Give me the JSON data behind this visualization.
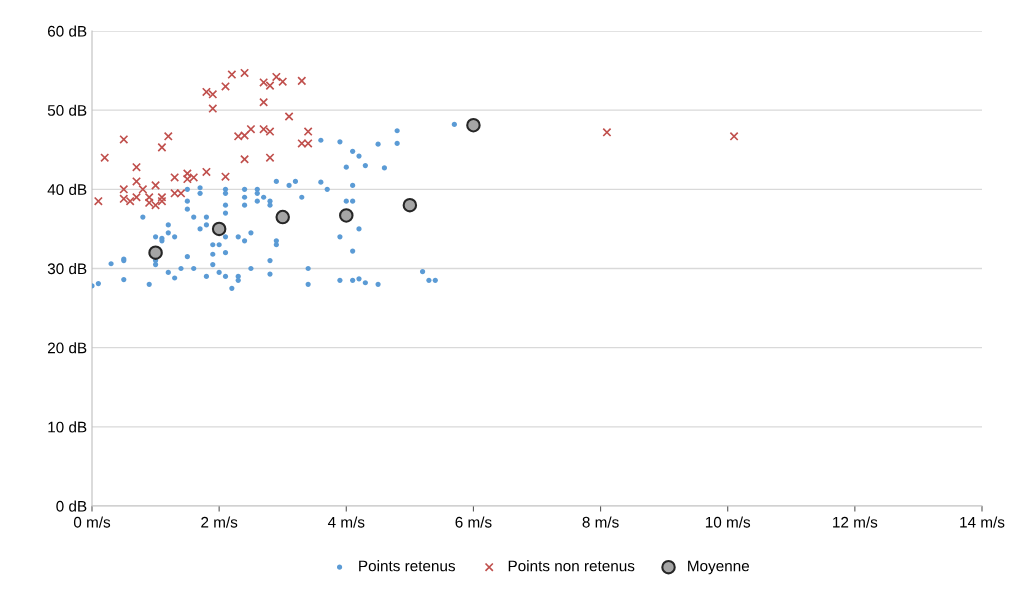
{
  "chart_data": {
    "type": "scatter",
    "xlim": [
      0,
      14
    ],
    "ylim": [
      0,
      60
    ],
    "xticks": [
      {
        "value": 0,
        "label": "0 m/s"
      },
      {
        "value": 2,
        "label": "2 m/s"
      },
      {
        "value": 4,
        "label": "4 m/s"
      },
      {
        "value": 6,
        "label": "6 m/s"
      },
      {
        "value": 8,
        "label": "8 m/s"
      },
      {
        "value": 10,
        "label": "10 m/s"
      },
      {
        "value": 12,
        "label": "12 m/s"
      },
      {
        "value": 14,
        "label": "14 m/s"
      }
    ],
    "yticks": [
      {
        "value": 0,
        "label": "0 dB"
      },
      {
        "value": 10,
        "label": "10 dB"
      },
      {
        "value": 20,
        "label": "20 dB"
      },
      {
        "value": 30,
        "label": "30 dB"
      },
      {
        "value": 40,
        "label": "40 dB"
      },
      {
        "value": 50,
        "label": "50 dB"
      },
      {
        "value": 60,
        "label": "60 dB"
      }
    ],
    "grid": "y",
    "legend": "bottom",
    "series": [
      {
        "name": "Points retenus",
        "color": "#5b9bd5",
        "marker": "circle",
        "x": [
          0.0,
          0.1,
          0.3,
          0.5,
          0.5,
          0.5,
          0.8,
          0.9,
          1.0,
          1.0,
          1.0,
          1.1,
          1.1,
          1.2,
          1.2,
          1.2,
          1.3,
          1.3,
          1.4,
          1.5,
          1.5,
          1.5,
          1.5,
          1.6,
          1.6,
          1.7,
          1.7,
          1.7,
          1.8,
          1.8,
          1.8,
          1.9,
          1.9,
          1.9,
          2.0,
          2.0,
          2.1,
          2.1,
          2.1,
          2.1,
          2.1,
          2.1,
          2.1,
          2.2,
          2.3,
          2.3,
          2.3,
          2.4,
          2.4,
          2.4,
          2.4,
          2.5,
          2.5,
          2.6,
          2.6,
          2.6,
          2.7,
          2.8,
          2.8,
          2.8,
          2.8,
          2.9,
          2.9,
          2.9,
          3.1,
          3.2,
          3.3,
          3.4,
          3.4,
          3.6,
          3.6,
          3.7,
          3.9,
          3.9,
          3.9,
          4.0,
          4.0,
          4.1,
          4.1,
          4.1,
          4.1,
          4.1,
          4.2,
          4.2,
          4.2,
          4.3,
          4.3,
          4.5,
          4.5,
          4.6,
          4.8,
          4.8,
          5.2,
          5.3,
          5.4,
          5.7
        ],
        "values": [
          27.8,
          28.1,
          30.6,
          31,
          31.2,
          28.6,
          36.5,
          28,
          30.5,
          31,
          34,
          33.5,
          33.8,
          35.5,
          34.5,
          29.5,
          28.8,
          34,
          30,
          31.5,
          37.5,
          40,
          38.5,
          36.5,
          30,
          35,
          39.5,
          40.2,
          29,
          35.5,
          36.5,
          33,
          31.8,
          30.5,
          33,
          29.5,
          40,
          39.5,
          38,
          37,
          34,
          32,
          29,
          27.5,
          28.5,
          29,
          34,
          39,
          38,
          40,
          33.5,
          34.5,
          30,
          40,
          38.5,
          39.5,
          39,
          38.5,
          38,
          31,
          29.3,
          33.5,
          33,
          41,
          40.5,
          41,
          39,
          30,
          28,
          40.9,
          46.2,
          40,
          46,
          34,
          28.5,
          38.5,
          42.8,
          44.8,
          38.5,
          40.5,
          32.2,
          28.5,
          44.2,
          35,
          28.7,
          43,
          28.2,
          45.7,
          28,
          42.7,
          47.4,
          45.8,
          29.6,
          28.5,
          28.5,
          48.2
        ]
      },
      {
        "name": "Points non retenus",
        "color": "#c0504d",
        "marker": "cross",
        "x": [
          0.1,
          0.2,
          0.5,
          0.5,
          0.5,
          0.6,
          0.7,
          0.7,
          0.7,
          0.8,
          0.9,
          0.9,
          1.0,
          1.0,
          1.1,
          1.1,
          1.2,
          1.1,
          1.3,
          1.3,
          1.4,
          1.5,
          1.5,
          1.6,
          1.8,
          1.8,
          1.9,
          1.9,
          2.1,
          2.1,
          2.2,
          2.3,
          2.4,
          2.4,
          2.4,
          2.5,
          2.7,
          2.7,
          2.7,
          2.8,
          2.8,
          2.8,
          2.9,
          3.0,
          3.1,
          3.3,
          3.3,
          3.4,
          3.4,
          8.1,
          10.1
        ],
        "values": [
          38.5,
          44,
          46.3,
          40,
          38.8,
          38.5,
          42.8,
          41,
          39,
          40,
          38.3,
          39,
          40.5,
          38,
          39,
          45.3,
          46.7,
          38.5,
          41.5,
          39.5,
          39.5,
          42,
          41.3,
          41.5,
          42.2,
          52.3,
          52,
          50.2,
          41.6,
          53,
          54.5,
          46.7,
          46.8,
          54.7,
          43.8,
          47.6,
          51,
          53.5,
          47.6,
          53.1,
          47.3,
          44,
          54.2,
          53.6,
          49.2,
          53.7,
          45.8,
          45.8,
          47.3,
          47.2,
          46.7
        ]
      },
      {
        "name": "Moyenne",
        "color": "#a5a5a5",
        "marker": "circle",
        "x": [
          1,
          2,
          3,
          4,
          5,
          6
        ],
        "values": [
          32,
          35,
          36.5,
          36.7,
          38,
          48.1
        ]
      }
    ]
  }
}
